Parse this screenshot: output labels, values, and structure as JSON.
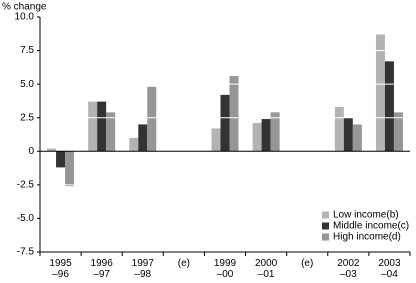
{
  "chart_data": {
    "type": "bar",
    "y_label": "% change",
    "categories": [
      "1995\n–96",
      "1996\n–97",
      "1997\n–98",
      "(e)",
      "1999\n–00",
      "2000\n–01",
      "(e)",
      "2002\n–03",
      "2003\n–04"
    ],
    "series": [
      {
        "name": "Low income(b)",
        "color": "#b3b3b3",
        "values": [
          0.2,
          3.7,
          1.0,
          null,
          1.7,
          2.1,
          null,
          3.3,
          8.7
        ]
      },
      {
        "name": "Middle income(c)",
        "color": "#333333",
        "values": [
          -1.2,
          3.7,
          2.0,
          null,
          4.2,
          2.4,
          null,
          2.5,
          6.7
        ]
      },
      {
        "name": "High income(d)",
        "color": "#969696",
        "values": [
          -2.6,
          2.9,
          4.8,
          null,
          5.6,
          2.9,
          null,
          2.0,
          2.9
        ]
      }
    ],
    "ylim": [
      -7.5,
      10
    ],
    "yticks": [
      {
        "value": -7.5,
        "label": "-7.5"
      },
      {
        "value": -5,
        "label": "-5.0"
      },
      -2.5,
      0,
      2.5,
      {
        "value": 5,
        "label": "5.0"
      },
      7.5,
      {
        "value": 10,
        "label": "10.0"
      }
    ],
    "grid": true,
    "legend": "lower right"
  }
}
